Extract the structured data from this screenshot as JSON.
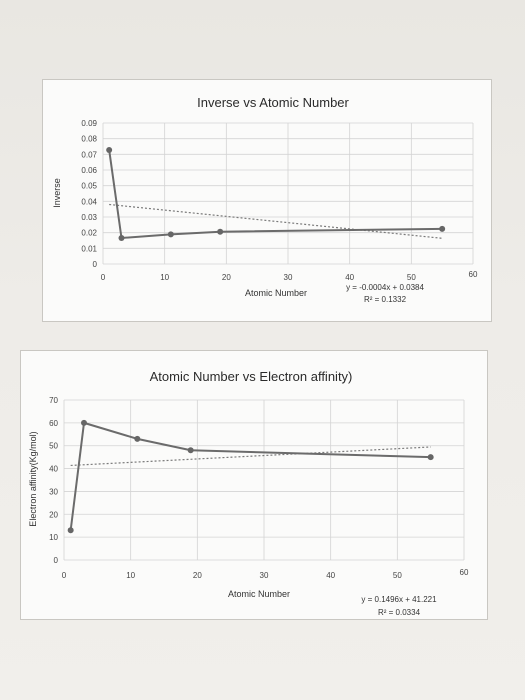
{
  "chart_data": [
    {
      "type": "line",
      "title": "Inverse vs Atomic Number",
      "xlabel": "Atomic Number",
      "ylabel": "Inverse",
      "xlim": [
        0,
        60
      ],
      "ylim": [
        0,
        0.09
      ],
      "x_ticks": [
        "0",
        "10",
        "20",
        "30",
        "40",
        "50",
        "60"
      ],
      "y_ticks": [
        "0",
        "0.01",
        "0.02",
        "0.03",
        "0.04",
        "0.05",
        "0.06",
        "0.07",
        "0.08",
        "0.09"
      ],
      "grid": true,
      "series": [
        {
          "x": [
            1,
            3,
            11,
            19,
            55
          ],
          "values": [
            0.0728,
            0.0166,
            0.0189,
            0.0206,
            0.0224
          ]
        }
      ],
      "trendline": {
        "equation": "y = -0.0004x + 0.0384",
        "r2": "R² = 0.1332",
        "slope": -0.0004,
        "intercept": 0.0384
      },
      "colors": {
        "line": "#6b6b6b",
        "trend": "#7a7a7a"
      }
    },
    {
      "type": "line",
      "title": "Atomic Number vs Electron affinity)",
      "xlabel": "Atomic Number",
      "ylabel": "Electron affinity(Kg/mol)",
      "xlim": [
        0,
        60
      ],
      "ylim": [
        0,
        70
      ],
      "x_ticks": [
        "0",
        "10",
        "20",
        "30",
        "40",
        "50",
        "60"
      ],
      "y_ticks": [
        "0",
        "10",
        "20",
        "30",
        "40",
        "50",
        "60",
        "70"
      ],
      "grid": true,
      "series": [
        {
          "x": [
            1,
            3,
            11,
            19,
            55
          ],
          "values": [
            13,
            60,
            53,
            48,
            45
          ]
        }
      ],
      "trendline": {
        "equation": "y = 0.1496x + 41.221",
        "r2": "R² = 0.0334",
        "slope": 0.1496,
        "intercept": 41.221
      },
      "colors": {
        "line": "#6b6b6b",
        "trend": "#7a7a7a"
      }
    }
  ]
}
